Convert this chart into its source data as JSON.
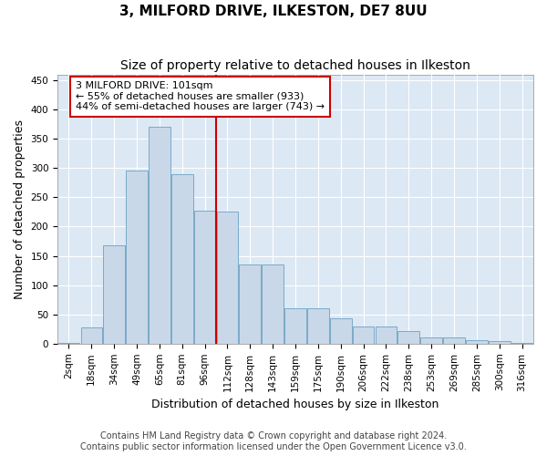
{
  "title": "3, MILFORD DRIVE, ILKESTON, DE7 8UU",
  "subtitle": "Size of property relative to detached houses in Ilkeston",
  "xlabel": "Distribution of detached houses by size in Ilkeston",
  "ylabel": "Number of detached properties",
  "footer_line1": "Contains HM Land Registry data © Crown copyright and database right 2024.",
  "footer_line2": "Contains public sector information licensed under the Open Government Licence v3.0.",
  "bar_labels": [
    "2sqm",
    "18sqm",
    "34sqm",
    "49sqm",
    "65sqm",
    "81sqm",
    "96sqm",
    "112sqm",
    "128sqm",
    "143sqm",
    "159sqm",
    "175sqm",
    "190sqm",
    "206sqm",
    "222sqm",
    "238sqm",
    "253sqm",
    "269sqm",
    "285sqm",
    "300sqm",
    "316sqm"
  ],
  "bar_values": [
    1,
    28,
    168,
    296,
    370,
    290,
    227,
    226,
    135,
    135,
    61,
    61,
    43,
    30,
    30,
    22,
    11,
    11,
    6,
    4,
    1
  ],
  "bar_color": "#c8d8e8",
  "bar_edge_color": "#7aaac8",
  "vline_x": 6.5,
  "vline_color": "#cc0000",
  "annotation_title": "3 MILFORD DRIVE: 101sqm",
  "annotation_line1": "← 55% of detached houses are smaller (933)",
  "annotation_line2": "44% of semi-detached houses are larger (743) →",
  "ylim": [
    0,
    460
  ],
  "yticks": [
    0,
    50,
    100,
    150,
    200,
    250,
    300,
    350,
    400,
    450
  ],
  "plot_bg_color": "#dce8f4",
  "title_fontsize": 11,
  "subtitle_fontsize": 10,
  "xlabel_fontsize": 9,
  "ylabel_fontsize": 9,
  "tick_fontsize": 7.5,
  "footer_fontsize": 7
}
